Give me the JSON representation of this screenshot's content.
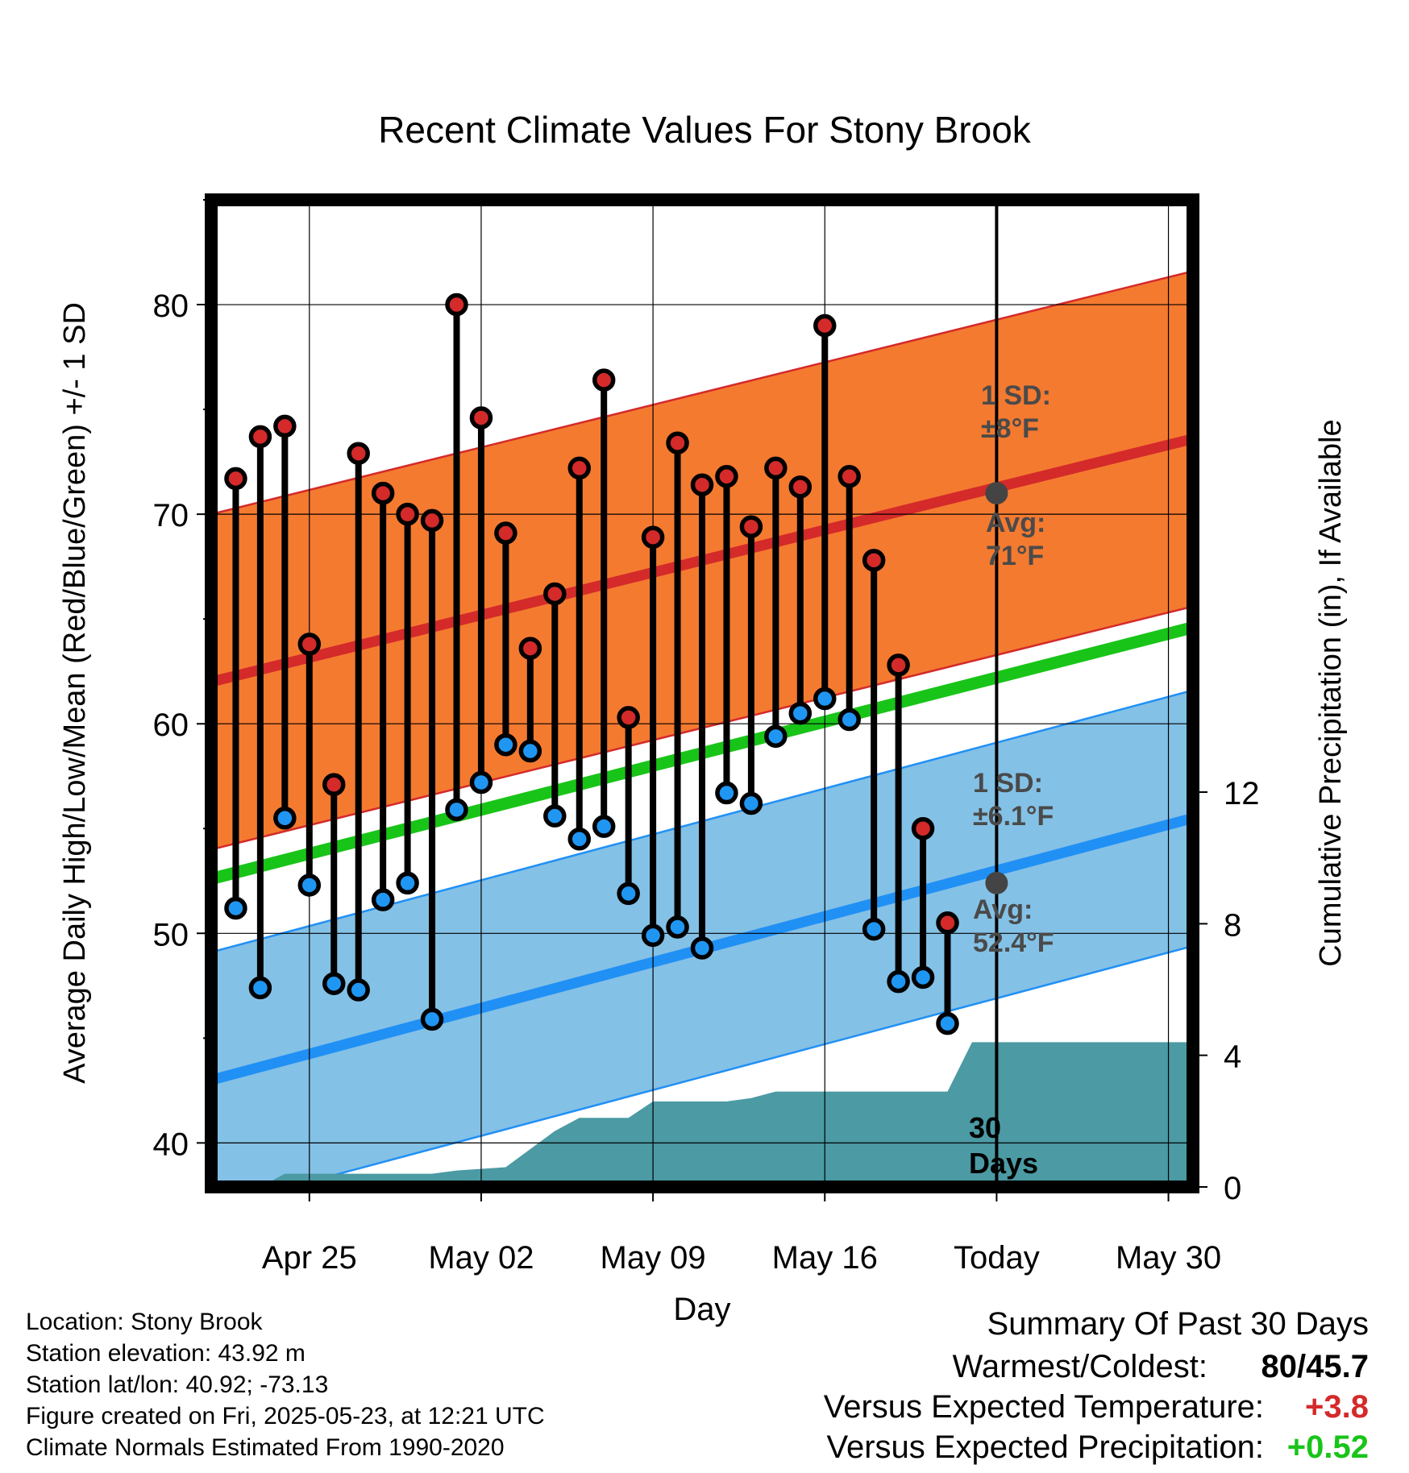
{
  "page": {
    "title": "Recent Climate Values For Stony Brook",
    "footer": {
      "location": "Location: Stony Brook",
      "elevation": "Station elevation: 43.92 m",
      "latlon": "Station lat/lon: 40.92; -73.13",
      "created": "Figure created on Fri, 2025-05-23, at 12:21 UTC",
      "normals": "Climate Normals Estimated From 1990-2020"
    },
    "summary": {
      "heading": "Summary Of Past 30 Days",
      "warm_cold_label": "Warmest/Coldest:",
      "warm_cold_value": "80/45.7",
      "temp_label": "Versus Expected Temperature:",
      "temp_value": "+3.8",
      "precip_label": "Versus Expected Precipitation:",
      "precip_value": "+0.52"
    }
  },
  "colors": {
    "high_band": "#f47a30",
    "high_mean": "#d42a2a",
    "low_band": "#84c1e6",
    "low_mean": "#2090f5",
    "mean_line": "#19c419",
    "precip": "#4b9aa4",
    "marker_high": "#d42a2a",
    "marker_low": "#2096f3",
    "avg_dot": "#444444",
    "annot": "#4a4a4a",
    "temp_diff": "#d42a2a",
    "precip_diff": "#19c419"
  },
  "chart_data": {
    "type": "line",
    "title": "Recent Climate Values For Stony Brook",
    "xlabel": "Day",
    "ylabel": "Average Daily High/Low/Mean (Red/Blue/Green) +/- 1 SD",
    "y2label": "Cumulative Precipitation (in), If Available",
    "x_range": [
      "2025-04-21",
      "2025-05-31"
    ],
    "ylim": [
      37.9,
      85
    ],
    "y2lim": [
      0,
      30
    ],
    "yticks": [
      40,
      50,
      60,
      70,
      80
    ],
    "y2ticks": [
      0,
      4,
      8,
      12
    ],
    "xtick_labels": [
      {
        "date": "2025-04-25",
        "label": "Apr 25"
      },
      {
        "date": "2025-05-02",
        "label": "May 02"
      },
      {
        "date": "2025-05-09",
        "label": "May 09"
      },
      {
        "date": "2025-05-16",
        "label": "May 16"
      },
      {
        "date": "2025-05-23",
        "label": "Today"
      },
      {
        "date": "2025-05-30",
        "label": "May 30"
      }
    ],
    "grid": true,
    "today": "2025-05-23",
    "days": [
      "2025-04-22",
      "2025-04-23",
      "2025-04-24",
      "2025-04-25",
      "2025-04-26",
      "2025-04-27",
      "2025-04-28",
      "2025-04-29",
      "2025-04-30",
      "2025-05-01",
      "2025-05-02",
      "2025-05-03",
      "2025-05-04",
      "2025-05-05",
      "2025-05-06",
      "2025-05-07",
      "2025-05-08",
      "2025-05-09",
      "2025-05-10",
      "2025-05-11",
      "2025-05-12",
      "2025-05-13",
      "2025-05-14",
      "2025-05-15",
      "2025-05-16",
      "2025-05-17",
      "2025-05-18",
      "2025-05-19",
      "2025-05-20",
      "2025-05-21",
      "2025-05-22"
    ],
    "daily_high": [
      71.7,
      73.7,
      74.2,
      63.8,
      57.1,
      72.9,
      71.0,
      70.0,
      69.7,
      80.0,
      74.6,
      69.1,
      63.6,
      66.2,
      72.2,
      76.4,
      60.3,
      68.9,
      73.4,
      71.4,
      71.8,
      69.4,
      72.2,
      71.3,
      79.0,
      71.8,
      67.8,
      62.8,
      55.0,
      50.5,
      null
    ],
    "daily_low": [
      51.2,
      47.4,
      55.5,
      52.3,
      47.6,
      47.3,
      51.6,
      52.4,
      45.9,
      55.9,
      57.2,
      59.0,
      58.7,
      55.6,
      54.5,
      55.1,
      51.9,
      49.9,
      50.3,
      49.3,
      56.7,
      56.2,
      59.4,
      60.5,
      61.2,
      60.2,
      50.2,
      47.7,
      47.9,
      45.7,
      null
    ],
    "normal_high": {
      "start": 62.0,
      "end": 73.6,
      "sd": 8
    },
    "normal_low": {
      "start": 43.0,
      "end": 55.5,
      "sd": 6.1
    },
    "normal_mean": {
      "start": 52.6,
      "end": 64.6
    },
    "precip_cumulative": [
      {
        "date": "2025-04-21",
        "value": 0
      },
      {
        "date": "2025-04-23",
        "value": 0
      },
      {
        "date": "2025-04-24",
        "value": 0.4
      },
      {
        "date": "2025-04-30",
        "value": 0.4
      },
      {
        "date": "2025-05-01",
        "value": 0.5
      },
      {
        "date": "2025-05-03",
        "value": 0.6
      },
      {
        "date": "2025-05-05",
        "value": 1.7
      },
      {
        "date": "2025-05-06",
        "value": 2.1
      },
      {
        "date": "2025-05-08",
        "value": 2.1
      },
      {
        "date": "2025-05-09",
        "value": 2.6
      },
      {
        "date": "2025-05-12",
        "value": 2.6
      },
      {
        "date": "2025-05-13",
        "value": 2.7
      },
      {
        "date": "2025-05-14",
        "value": 2.9
      },
      {
        "date": "2025-05-21",
        "value": 2.9
      },
      {
        "date": "2025-05-22",
        "value": 4.4
      },
      {
        "date": "2025-05-31",
        "value": 4.4
      }
    ],
    "annotations": {
      "high_sd": "1 SD:\n±8°F",
      "high_avg": "Avg:\n71°F",
      "low_sd": "1 SD:\n±6.1°F",
      "low_avg": "Avg:\n52.4°F",
      "window": "30\nDays"
    },
    "today_avg_high": 71,
    "today_avg_low": 52.4
  }
}
